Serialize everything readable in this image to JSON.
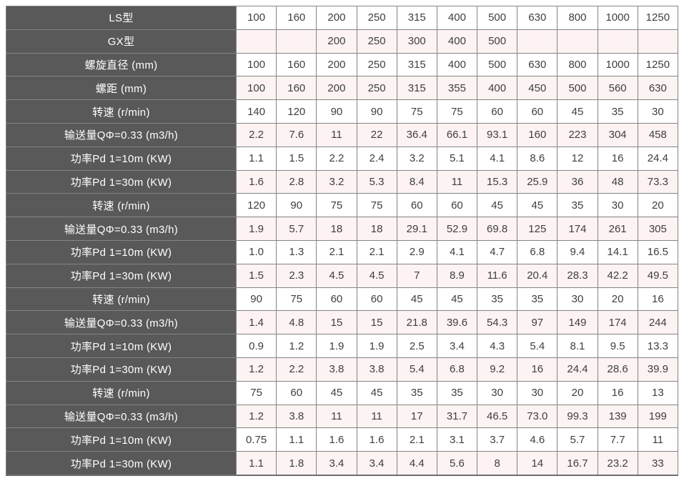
{
  "colors": {
    "header_bg": "#595959",
    "header_text": "#ffffff",
    "row_bg": "#ffffff",
    "row_alt_bg": "#fcf3f2",
    "border": "#848484",
    "value_text": "#3f3f3f"
  },
  "chart_data": {
    "type": "table",
    "columns_count": 11,
    "rows": [
      {
        "label": "LS型",
        "values": [
          "100",
          "160",
          "200",
          "250",
          "315",
          "400",
          "500",
          "630",
          "800",
          "1000",
          "1250"
        ]
      },
      {
        "label": "GX型",
        "values": [
          "",
          "",
          "200",
          "250",
          "300",
          "400",
          "500",
          "",
          "",
          "",
          ""
        ]
      },
      {
        "label": "螺旋直径 (mm)",
        "values": [
          "100",
          "160",
          "200",
          "250",
          "315",
          "400",
          "500",
          "630",
          "800",
          "1000",
          "1250"
        ]
      },
      {
        "label": "螺距 (mm)",
        "values": [
          "100",
          "160",
          "200",
          "250",
          "315",
          "355",
          "400",
          "450",
          "500",
          "560",
          "630"
        ]
      },
      {
        "label": "转速 (r/min)",
        "values": [
          "140",
          "120",
          "90",
          "90",
          "75",
          "75",
          "60",
          "60",
          "45",
          "35",
          "30"
        ]
      },
      {
        "label": "输送量QΦ=0.33 (m3/h)",
        "values": [
          "2.2",
          "7.6",
          "11",
          "22",
          "36.4",
          "66.1",
          "93.1",
          "160",
          "223",
          "304",
          "458"
        ]
      },
      {
        "label": "功率Pd 1=10m (KW)",
        "values": [
          "1.1",
          "1.5",
          "2.2",
          "2.4",
          "3.2",
          "5.1",
          "4.1",
          "8.6",
          "12",
          "16",
          "24.4"
        ]
      },
      {
        "label": "功率Pd 1=30m (KW)",
        "values": [
          "1.6",
          "2.8",
          "3.2",
          "5.3",
          "8.4",
          "11",
          "15.3",
          "25.9",
          "36",
          "48",
          "73.3"
        ]
      },
      {
        "label": "转速 (r/min)",
        "values": [
          "120",
          "90",
          "75",
          "75",
          "60",
          "60",
          "45",
          "45",
          "35",
          "30",
          "20"
        ]
      },
      {
        "label": "输送量QΦ=0.33 (m3/h)",
        "values": [
          "1.9",
          "5.7",
          "18",
          "18",
          "29.1",
          "52.9",
          "69.8",
          "125",
          "174",
          "261",
          "305"
        ]
      },
      {
        "label": "功率Pd 1=10m (KW)",
        "values": [
          "1.0",
          "1.3",
          "2.1",
          "2.1",
          "2.9",
          "4.1",
          "4.7",
          "6.8",
          "9.4",
          "14.1",
          "16.5"
        ]
      },
      {
        "label": "功率Pd 1=30m (KW)",
        "values": [
          "1.5",
          "2.3",
          "4.5",
          "4.5",
          "7",
          "8.9",
          "11.6",
          "20.4",
          "28.3",
          "42.2",
          "49.5"
        ]
      },
      {
        "label": "转速 (r/min)",
        "values": [
          "90",
          "75",
          "60",
          "60",
          "45",
          "45",
          "35",
          "35",
          "30",
          "20",
          "16"
        ]
      },
      {
        "label": "输送量QΦ=0.33 (m3/h)",
        "values": [
          "1.4",
          "4.8",
          "15",
          "15",
          "21.8",
          "39.6",
          "54.3",
          "97",
          "149",
          "174",
          "244"
        ]
      },
      {
        "label": "功率Pd 1=10m (KW)",
        "values": [
          "0.9",
          "1.2",
          "1.9",
          "1.9",
          "2.5",
          "3.4",
          "4.3",
          "5.4",
          "8.1",
          "9.5",
          "13.3"
        ]
      },
      {
        "label": "功率Pd 1=30m (KW)",
        "values": [
          "1.2",
          "2.2",
          "3.8",
          "3.8",
          "5.4",
          "6.8",
          "9.2",
          "16",
          "24.4",
          "28.6",
          "39.9"
        ]
      },
      {
        "label": "转速 (r/min)",
        "values": [
          "75",
          "60",
          "45",
          "45",
          "35",
          "35",
          "30",
          "30",
          "20",
          "16",
          "13"
        ]
      },
      {
        "label": "输送量QΦ=0.33 (m3/h)",
        "values": [
          "1.2",
          "3.8",
          "11",
          "11",
          "17",
          "31.7",
          "46.5",
          "73.0",
          "99.3",
          "139",
          "199"
        ]
      },
      {
        "label": "功率Pd 1=10m (KW)",
        "values": [
          "0.75",
          "1.1",
          "1.6",
          "1.6",
          "2.1",
          "3.1",
          "3.7",
          "4.6",
          "5.7",
          "7.7",
          "11"
        ]
      },
      {
        "label": "功率Pd 1=30m (KW)",
        "values": [
          "1.1",
          "1.8",
          "3.4",
          "3.4",
          "4.4",
          "5.6",
          "8",
          "14",
          "16.7",
          "23.2",
          "33"
        ]
      }
    ]
  }
}
